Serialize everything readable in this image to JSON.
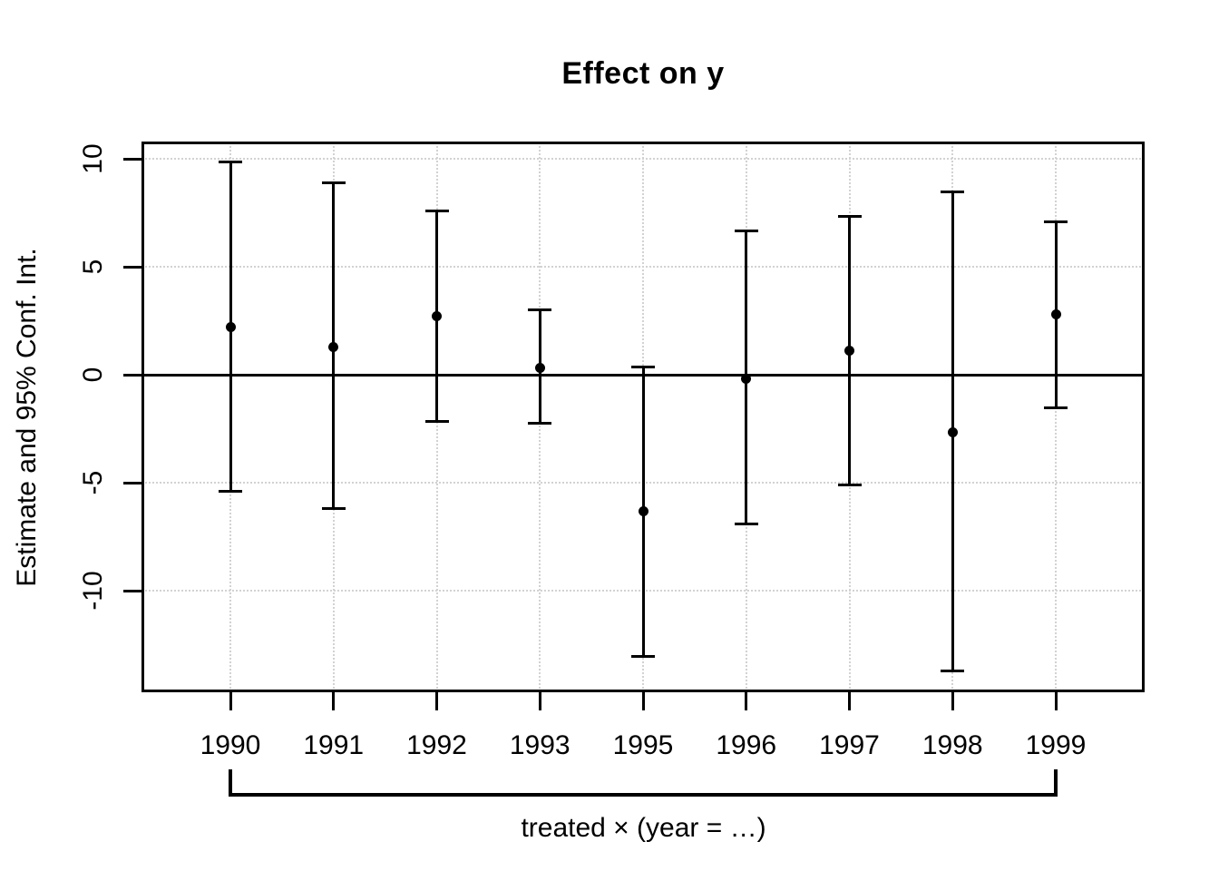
{
  "figure": {
    "background": "#ffffff",
    "foreground": "#000000"
  },
  "chart_data": {
    "type": "scatter",
    "subtype": "coefficient-plot-with-95ci-error-bars",
    "title": "Effect on y",
    "xlabel": "treated × (year = …)",
    "ylabel": "Estimate and 95% Conf. Int.",
    "categories": [
      "1990",
      "1991",
      "1992",
      "1993",
      "1995",
      "1996",
      "1997",
      "1998",
      "1999"
    ],
    "series": [
      {
        "name": "estimate",
        "values": [
          2.2,
          1.3,
          2.7,
          0.3,
          -6.3,
          -0.2,
          1.1,
          -2.65,
          2.8
        ]
      },
      {
        "name": "ci95_lower",
        "values": [
          -5.4,
          -6.2,
          -2.15,
          -2.25,
          -13.05,
          -6.9,
          -5.1,
          -13.7,
          -1.55
        ]
      },
      {
        "name": "ci95_upper",
        "values": [
          9.85,
          8.9,
          7.6,
          3.0,
          0.35,
          6.65,
          7.35,
          8.45,
          7.1
        ]
      }
    ],
    "y_ticks": [
      10,
      5,
      0,
      -5,
      -10
    ],
    "ylim": [
      -14.7,
      10.8
    ],
    "grid": {
      "x": true,
      "y": true,
      "style": "dotted",
      "color": "#d2d2d2"
    },
    "reference_line": {
      "y": 0,
      "style": "solid",
      "color": "#000000"
    },
    "point_color": "#000000",
    "error_bar_color": "#000000",
    "legend": "none",
    "x_group_bracket": {
      "from": "1990",
      "to": "1999",
      "label": "treated × (year = …)"
    }
  }
}
